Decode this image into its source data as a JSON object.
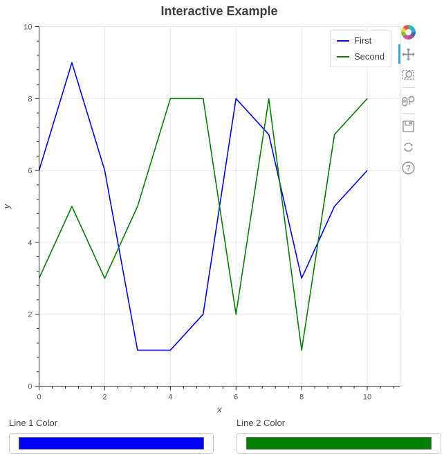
{
  "title": "Interactive Example",
  "chart_data": {
    "type": "line",
    "title": "Interactive Example",
    "xlabel": "x",
    "ylabel": "y",
    "x": [
      0,
      1,
      2,
      3,
      4,
      5,
      6,
      7,
      8,
      9,
      10
    ],
    "series": [
      {
        "name": "First",
        "color": "#0000ff",
        "values": [
          6,
          9,
          6,
          1,
          1,
          2,
          8,
          7,
          3,
          5,
          6
        ]
      },
      {
        "name": "Second",
        "color": "#008000",
        "values": [
          3,
          5,
          3,
          5,
          8,
          8,
          2,
          8,
          1,
          7,
          8
        ]
      }
    ],
    "xlim": [
      0,
      11
    ],
    "ylim": [
      0,
      10
    ],
    "x_ticks": [
      0,
      2,
      4,
      6,
      8,
      10
    ],
    "y_ticks": [
      0,
      2,
      4,
      6,
      8,
      10
    ],
    "minor_step": 0.4,
    "grid": true,
    "legend_position": "top-right"
  },
  "legend": {
    "items": [
      {
        "label": "First",
        "color": "#0000ff"
      },
      {
        "label": "Second",
        "color": "#008000"
      }
    ]
  },
  "toolbar": {
    "logo": "bokeh-logo",
    "active_tool": "pan",
    "tools": [
      "pan",
      "box-zoom",
      "wheel-zoom",
      "save",
      "reset",
      "help"
    ]
  },
  "widgets": {
    "line1_color": {
      "label": "Line 1 Color",
      "value": "#0000ff"
    },
    "line2_color": {
      "label": "Line 2 Color",
      "value": "#008000"
    }
  },
  "colors": {
    "accent": "#29abe2",
    "grid": "#e5e5e5",
    "axis_line": "#2b2b2b",
    "tick_text": "#555555",
    "title_text": "#3c3c3c",
    "toolbar_icon": "#8f979c"
  }
}
